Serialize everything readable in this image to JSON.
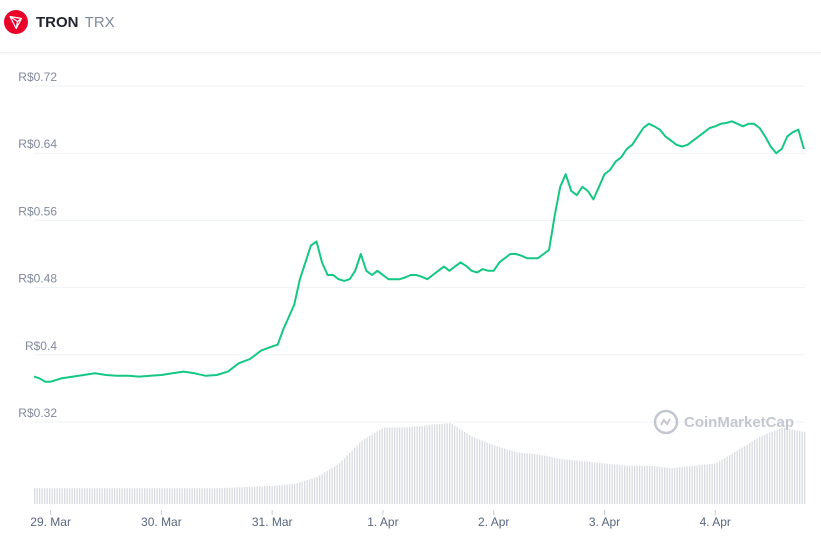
{
  "header": {
    "name": "TRON",
    "symbol": "TRX",
    "logo_color": "#eb0029"
  },
  "watermark": {
    "text": "CoinMarketCap",
    "icon": "coinmarketcap-logo-icon"
  },
  "colors": {
    "line": "#16c784",
    "volume": "#d8dbe0",
    "grid": "#eff2f5"
  },
  "chart_data": {
    "type": "line",
    "ylim": [
      0.32,
      0.72
    ],
    "yticks": [
      0.32,
      0.4,
      0.48,
      0.56,
      0.64,
      0.72
    ],
    "ytick_labels": [
      "R$0.32",
      "R$0.4",
      "R$0.48",
      "R$0.56",
      "R$0.64",
      "R$0.72"
    ],
    "xlim": [
      -0.15,
      6.81
    ],
    "xticks": [
      0,
      1,
      2,
      3,
      4,
      5,
      6
    ],
    "xtick_labels": [
      "29. Mar",
      "30. Mar",
      "31. Mar",
      "1. Apr",
      "2. Apr",
      "3. Apr",
      "4. Apr"
    ],
    "series": [
      {
        "values_x": [
          -0.15,
          -0.1,
          -0.05,
          0,
          0.05,
          0.1,
          0.15,
          0.2,
          0.3,
          0.4,
          0.5,
          0.6,
          0.7,
          0.8,
          0.9,
          1.0,
          1.1,
          1.2,
          1.3,
          1.4,
          1.5,
          1.6,
          1.7,
          1.8,
          1.9,
          2.0,
          2.05,
          2.1,
          2.15,
          2.2,
          2.25,
          2.3,
          2.35,
          2.4,
          2.45,
          2.5,
          2.55,
          2.6,
          2.65,
          2.7,
          2.75,
          2.8,
          2.85,
          2.9,
          2.95,
          3.0,
          3.05,
          3.1,
          3.15,
          3.2,
          3.25,
          3.3,
          3.35,
          3.4,
          3.45,
          3.5,
          3.55,
          3.6,
          3.65,
          3.7,
          3.75,
          3.8,
          3.85,
          3.9,
          3.95,
          4.0,
          4.05,
          4.1,
          4.15,
          4.2,
          4.25,
          4.3,
          4.35,
          4.4,
          4.45,
          4.5,
          4.55,
          4.6,
          4.65,
          4.7,
          4.75,
          4.8,
          4.85,
          4.9,
          4.95,
          5.0,
          5.05,
          5.1,
          5.15,
          5.2,
          5.25,
          5.3,
          5.35,
          5.4,
          5.45,
          5.5,
          5.55,
          5.6,
          5.65,
          5.7,
          5.75,
          5.8,
          5.85,
          5.9,
          5.95,
          6.0,
          6.05,
          6.1,
          6.15,
          6.2,
          6.25,
          6.3,
          6.35,
          6.4,
          6.45,
          6.5,
          6.55,
          6.6,
          6.65,
          6.7,
          6.75,
          6.8
        ],
        "values": [
          0.374,
          0.372,
          0.368,
          0.368,
          0.37,
          0.372,
          0.373,
          0.374,
          0.376,
          0.378,
          0.376,
          0.375,
          0.375,
          0.374,
          0.375,
          0.376,
          0.378,
          0.38,
          0.378,
          0.375,
          0.376,
          0.38,
          0.39,
          0.395,
          0.405,
          0.41,
          0.412,
          0.43,
          0.445,
          0.46,
          0.49,
          0.51,
          0.53,
          0.535,
          0.51,
          0.495,
          0.495,
          0.49,
          0.488,
          0.49,
          0.5,
          0.52,
          0.5,
          0.495,
          0.5,
          0.495,
          0.49,
          0.49,
          0.49,
          0.492,
          0.495,
          0.495,
          0.493,
          0.49,
          0.495,
          0.5,
          0.505,
          0.5,
          0.505,
          0.51,
          0.506,
          0.5,
          0.498,
          0.502,
          0.5,
          0.5,
          0.51,
          0.515,
          0.52,
          0.52,
          0.518,
          0.515,
          0.515,
          0.515,
          0.52,
          0.525,
          0.565,
          0.6,
          0.615,
          0.595,
          0.59,
          0.6,
          0.595,
          0.585,
          0.6,
          0.615,
          0.62,
          0.63,
          0.635,
          0.645,
          0.65,
          0.66,
          0.67,
          0.675,
          0.672,
          0.668,
          0.66,
          0.655,
          0.65,
          0.648,
          0.65,
          0.655,
          0.66,
          0.665,
          0.67,
          0.672,
          0.675,
          0.676,
          0.678,
          0.675,
          0.672,
          0.675,
          0.675,
          0.67,
          0.66,
          0.648,
          0.64,
          0.645,
          0.66,
          0.665,
          0.668,
          0.645
        ]
      }
    ],
    "volume": {
      "values_x": [
        -0.15,
        0,
        0.5,
        1.0,
        1.5,
        2.0,
        2.2,
        2.4,
        2.6,
        2.8,
        3.0,
        3.2,
        3.4,
        3.6,
        3.8,
        4.0,
        4.2,
        4.4,
        4.6,
        4.8,
        5.0,
        5.2,
        5.4,
        5.6,
        5.8,
        6.0,
        6.2,
        6.4,
        6.6,
        6.8
      ],
      "values": [
        0.07,
        0.07,
        0.07,
        0.07,
        0.07,
        0.08,
        0.09,
        0.12,
        0.18,
        0.28,
        0.34,
        0.34,
        0.35,
        0.36,
        0.3,
        0.26,
        0.23,
        0.22,
        0.2,
        0.19,
        0.18,
        0.17,
        0.17,
        0.16,
        0.17,
        0.18,
        0.24,
        0.3,
        0.34,
        0.32
      ]
    },
    "title": "",
    "xlabel": "",
    "ylabel": "",
    "grid": true,
    "legend": "none"
  }
}
